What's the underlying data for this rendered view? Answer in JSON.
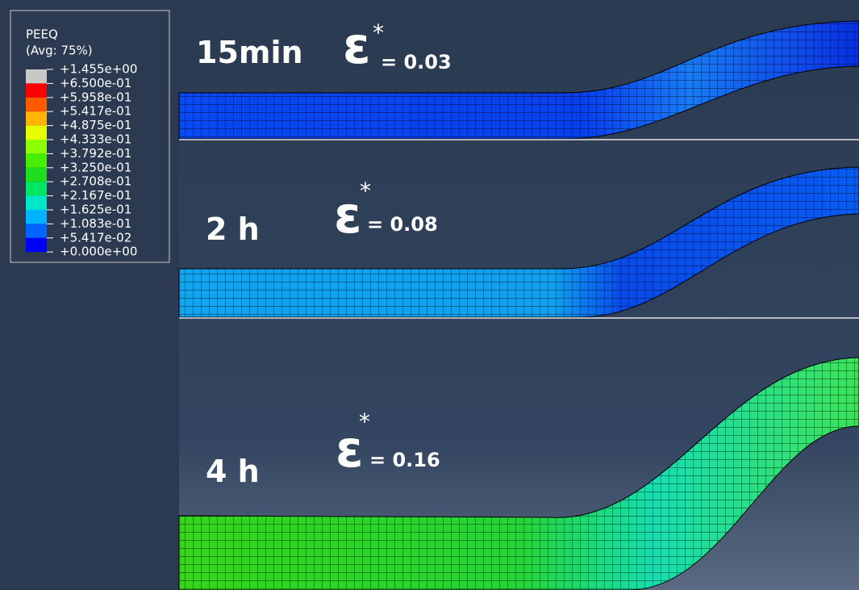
{
  "legend": {
    "title": "PEEQ",
    "subtitle": "(Avg: 75%)",
    "levels": [
      "+1.455e+00",
      "+6.500e-01",
      "+5.958e-01",
      "+5.417e-01",
      "+4.875e-01",
      "+4.333e-01",
      "+3.792e-01",
      "+3.250e-01",
      "+2.708e-01",
      "+2.167e-01",
      "+1.625e-01",
      "+1.083e-01",
      "+5.417e-02",
      "+0.000e+00"
    ],
    "colors": [
      "#c8c8c8",
      "#ff0000",
      "#ff5a00",
      "#ffb400",
      "#e6ff00",
      "#8cff00",
      "#46ee00",
      "#1edc1e",
      "#00e664",
      "#00e6c8",
      "#00b4ff",
      "#0064ff",
      "#0000ff"
    ]
  },
  "panels": [
    {
      "time": "15min",
      "symbol": "ε",
      "superscript": "*",
      "strain": "= 0.03"
    },
    {
      "time": "2 h",
      "symbol": "ε",
      "superscript": "*",
      "strain": "= 0.08"
    },
    {
      "time": "4 h",
      "symbol": "ε",
      "superscript": "*",
      "strain": "= 0.16"
    }
  ]
}
